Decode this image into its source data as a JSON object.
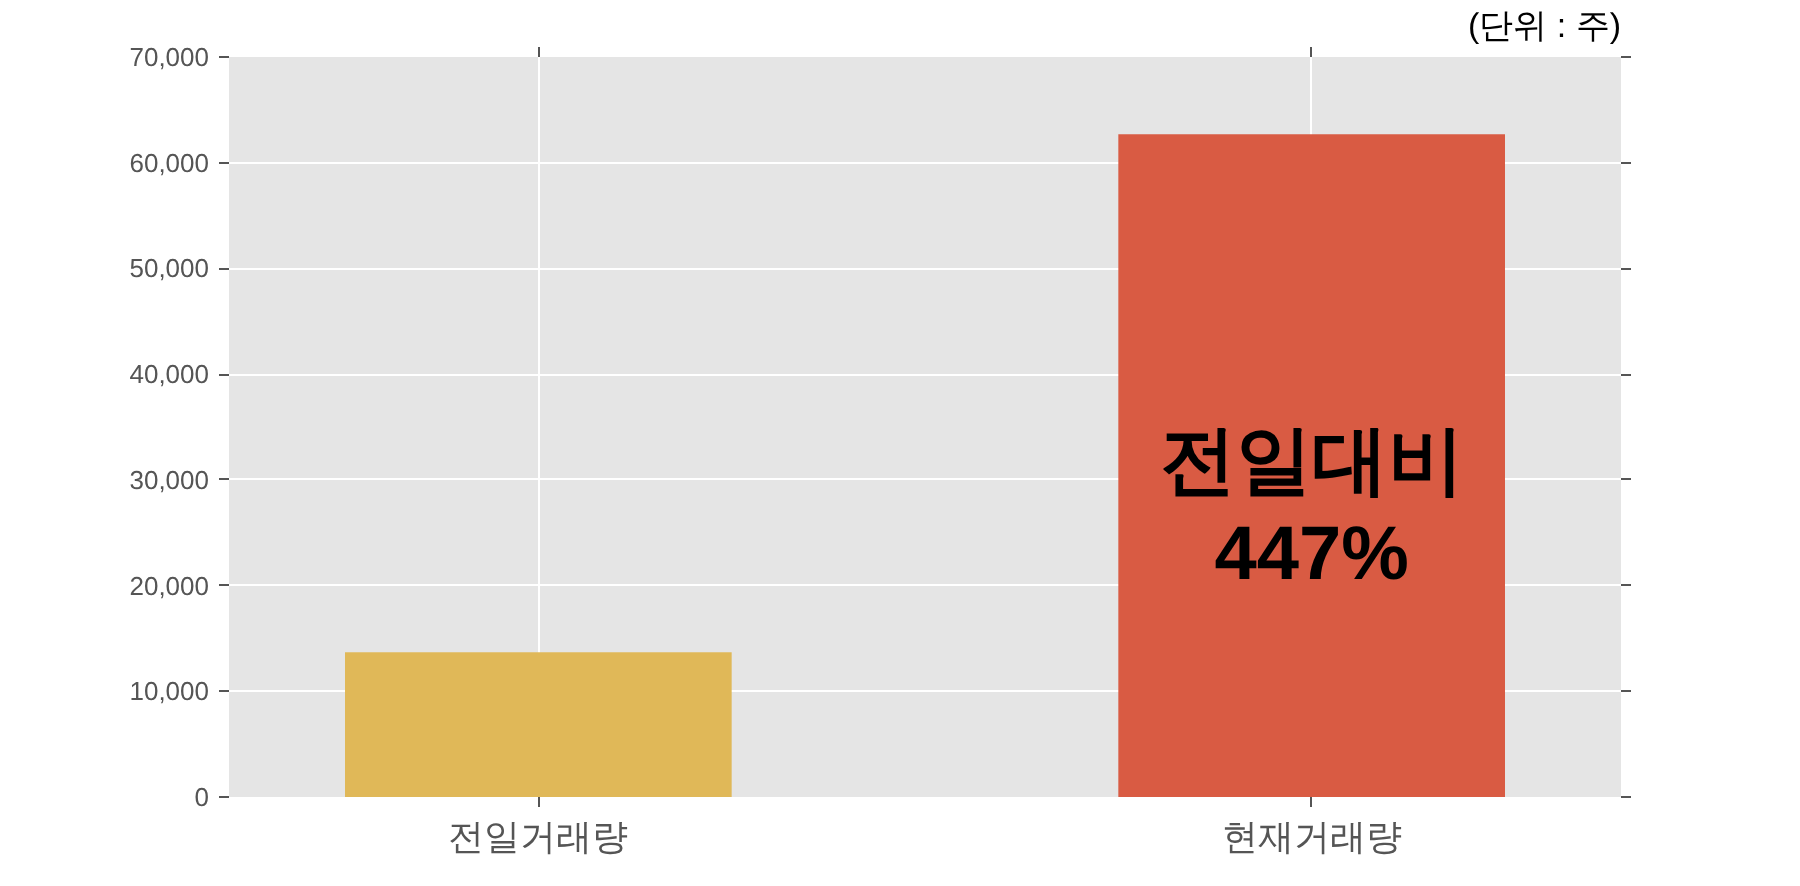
{
  "chart_data": {
    "type": "bar",
    "categories": [
      "전일거래량",
      "현재거래량"
    ],
    "values": [
      13700,
      62700
    ],
    "colors": [
      "#e0b858",
      "#d95b43"
    ],
    "ylim": [
      0,
      70000
    ],
    "yticks": [
      {
        "value": 0,
        "label": "0"
      },
      {
        "value": 10000,
        "label": "10,000"
      },
      {
        "value": 20000,
        "label": "20,000"
      },
      {
        "value": 30000,
        "label": "30,000"
      },
      {
        "value": 40000,
        "label": "40,000"
      },
      {
        "value": 50000,
        "label": "50,000"
      },
      {
        "value": 60000,
        "label": "60,000"
      },
      {
        "value": 70000,
        "label": "70,000"
      }
    ],
    "grid": true,
    "annotations": [
      "(단위 : 주)",
      "전일대비\n447%"
    ]
  }
}
